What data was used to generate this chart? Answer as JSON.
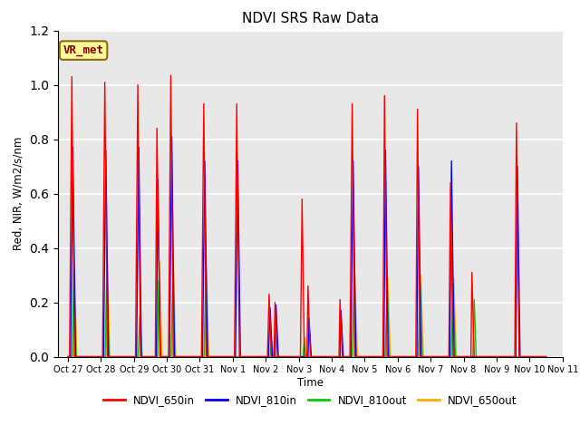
{
  "title": "NDVI SRS Raw Data",
  "ylabel": "Red, NIR, W/m2/s/nm",
  "xlabel": "Time",
  "ylim": [
    0,
    1.2
  ],
  "background_color": "#e8e8e8",
  "legend_labels": [
    "NDVI_650in",
    "NDVI_810in",
    "NDVI_810out",
    "NDVI_650out"
  ],
  "legend_colors": [
    "#ff0000",
    "#0000ff",
    "#00cc00",
    "#ffaa00"
  ],
  "annotation_text": "VR_met",
  "tick_labels": [
    "Oct 27",
    "Oct 28",
    "Oct 29",
    "Oct 30",
    "Oct 31",
    "Nov 1",
    "Nov 2",
    "Nov 3",
    "Nov 4",
    "Nov 5",
    "Nov 6",
    "Nov 7",
    "Nov 8",
    "Nov 9",
    "Nov 10",
    "Nov 11"
  ],
  "series": {
    "NDVI_650in": {
      "color": "#ff0000",
      "data": [
        [
          0.0,
          0.0
        ],
        [
          0.05,
          0.0
        ],
        [
          0.12,
          1.03
        ],
        [
          0.2,
          0.0
        ],
        [
          0.85,
          0.0
        ],
        [
          0.88,
          0.0
        ],
        [
          1.05,
          0.0
        ],
        [
          1.12,
          1.01
        ],
        [
          1.2,
          0.0
        ],
        [
          1.85,
          0.0
        ],
        [
          1.88,
          0.0
        ],
        [
          2.05,
          0.0
        ],
        [
          2.12,
          1.0
        ],
        [
          2.2,
          0.0
        ],
        [
          2.65,
          0.0
        ],
        [
          2.7,
          0.84
        ],
        [
          2.8,
          0.0
        ],
        [
          3.05,
          0.0
        ],
        [
          3.12,
          1.035
        ],
        [
          3.2,
          0.0
        ],
        [
          3.85,
          0.0
        ],
        [
          3.88,
          0.0
        ],
        [
          4.05,
          0.0
        ],
        [
          4.12,
          0.93
        ],
        [
          4.2,
          0.0
        ],
        [
          4.85,
          0.0
        ],
        [
          4.88,
          0.0
        ],
        [
          5.05,
          0.0
        ],
        [
          5.12,
          0.93
        ],
        [
          5.2,
          0.0
        ],
        [
          5.85,
          0.0
        ],
        [
          5.88,
          0.0
        ],
        [
          6.05,
          0.0
        ],
        [
          6.1,
          0.23
        ],
        [
          6.17,
          0.0
        ],
        [
          6.25,
          0.0
        ],
        [
          6.28,
          0.2
        ],
        [
          6.35,
          0.0
        ],
        [
          6.85,
          0.0
        ],
        [
          6.88,
          0.0
        ],
        [
          7.05,
          0.0
        ],
        [
          7.1,
          0.58
        ],
        [
          7.17,
          0.0
        ],
        [
          7.25,
          0.0
        ],
        [
          7.28,
          0.26
        ],
        [
          7.35,
          0.0
        ],
        [
          7.85,
          0.0
        ],
        [
          7.88,
          0.0
        ],
        [
          8.22,
          0.0
        ],
        [
          8.25,
          0.21
        ],
        [
          8.32,
          0.0
        ],
        [
          8.45,
          0.0
        ],
        [
          8.5,
          0.0
        ],
        [
          8.55,
          0.0
        ],
        [
          8.62,
          0.93
        ],
        [
          8.7,
          0.0
        ],
        [
          9.35,
          0.0
        ],
        [
          9.38,
          0.0
        ],
        [
          9.55,
          0.0
        ],
        [
          9.6,
          0.96
        ],
        [
          9.68,
          0.0
        ],
        [
          10.35,
          0.0
        ],
        [
          10.38,
          0.0
        ],
        [
          10.55,
          0.0
        ],
        [
          10.6,
          0.91
        ],
        [
          10.68,
          0.0
        ],
        [
          11.35,
          0.0
        ],
        [
          11.38,
          0.0
        ],
        [
          11.55,
          0.0
        ],
        [
          11.6,
          0.64
        ],
        [
          11.68,
          0.0
        ],
        [
          12.22,
          0.0
        ],
        [
          12.25,
          0.31
        ],
        [
          12.32,
          0.0
        ],
        [
          12.85,
          0.0
        ],
        [
          12.88,
          0.0
        ],
        [
          13.55,
          0.0
        ],
        [
          13.6,
          0.86
        ],
        [
          13.68,
          0.0
        ],
        [
          14.5,
          0.0
        ]
      ]
    },
    "NDVI_810in": {
      "color": "#0000ff",
      "data": [
        [
          0.0,
          0.0
        ],
        [
          0.08,
          0.0
        ],
        [
          0.15,
          0.77
        ],
        [
          0.23,
          0.0
        ],
        [
          0.85,
          0.0
        ],
        [
          0.88,
          0.0
        ],
        [
          1.08,
          0.0
        ],
        [
          1.15,
          0.76
        ],
        [
          1.23,
          0.0
        ],
        [
          1.85,
          0.0
        ],
        [
          1.88,
          0.0
        ],
        [
          2.08,
          0.0
        ],
        [
          2.15,
          0.77
        ],
        [
          2.23,
          0.0
        ],
        [
          2.68,
          0.0
        ],
        [
          2.73,
          0.65
        ],
        [
          2.8,
          0.0
        ],
        [
          3.08,
          0.0
        ],
        [
          3.15,
          0.81
        ],
        [
          3.23,
          0.0
        ],
        [
          3.85,
          0.0
        ],
        [
          3.88,
          0.0
        ],
        [
          4.08,
          0.0
        ],
        [
          4.15,
          0.72
        ],
        [
          4.23,
          0.0
        ],
        [
          4.85,
          0.0
        ],
        [
          4.88,
          0.0
        ],
        [
          5.08,
          0.0
        ],
        [
          5.15,
          0.72
        ],
        [
          5.23,
          0.0
        ],
        [
          5.85,
          0.0
        ],
        [
          5.88,
          0.0
        ],
        [
          6.08,
          0.0
        ],
        [
          6.13,
          0.18
        ],
        [
          6.2,
          0.0
        ],
        [
          6.28,
          0.0
        ],
        [
          6.31,
          0.19
        ],
        [
          6.38,
          0.0
        ],
        [
          6.85,
          0.0
        ],
        [
          6.88,
          0.0
        ],
        [
          7.08,
          0.0
        ],
        [
          7.13,
          0.0
        ],
        [
          7.2,
          0.0
        ],
        [
          7.28,
          0.0
        ],
        [
          7.31,
          0.14
        ],
        [
          7.38,
          0.0
        ],
        [
          7.85,
          0.0
        ],
        [
          7.88,
          0.0
        ],
        [
          8.25,
          0.0
        ],
        [
          8.28,
          0.17
        ],
        [
          8.35,
          0.0
        ],
        [
          8.48,
          0.0
        ],
        [
          8.5,
          0.0
        ],
        [
          8.58,
          0.0
        ],
        [
          8.65,
          0.72
        ],
        [
          8.73,
          0.0
        ],
        [
          9.38,
          0.0
        ],
        [
          9.4,
          0.0
        ],
        [
          9.58,
          0.0
        ],
        [
          9.63,
          0.76
        ],
        [
          9.71,
          0.0
        ],
        [
          10.38,
          0.0
        ],
        [
          10.4,
          0.0
        ],
        [
          10.58,
          0.0
        ],
        [
          10.63,
          0.7
        ],
        [
          10.71,
          0.0
        ],
        [
          11.38,
          0.0
        ],
        [
          11.4,
          0.0
        ],
        [
          11.58,
          0.0
        ],
        [
          11.63,
          0.72
        ],
        [
          11.71,
          0.0
        ],
        [
          12.25,
          0.0
        ],
        [
          12.28,
          0.0
        ],
        [
          12.35,
          0.0
        ],
        [
          12.85,
          0.0
        ],
        [
          12.88,
          0.0
        ],
        [
          13.58,
          0.0
        ],
        [
          13.63,
          0.7
        ],
        [
          13.71,
          0.0
        ],
        [
          14.5,
          0.0
        ]
      ]
    },
    "NDVI_810out": {
      "color": "#00cc00",
      "data": [
        [
          0.0,
          0.0
        ],
        [
          0.13,
          0.0
        ],
        [
          0.18,
          0.32
        ],
        [
          0.25,
          0.0
        ],
        [
          0.85,
          0.0
        ],
        [
          0.88,
          0.0
        ],
        [
          1.13,
          0.0
        ],
        [
          1.18,
          0.31
        ],
        [
          1.25,
          0.0
        ],
        [
          1.85,
          0.0
        ],
        [
          1.88,
          0.0
        ],
        [
          2.13,
          0.0
        ],
        [
          2.18,
          0.15
        ],
        [
          2.25,
          0.0
        ],
        [
          2.72,
          0.0
        ],
        [
          2.75,
          0.28
        ],
        [
          2.82,
          0.0
        ],
        [
          3.13,
          0.0
        ],
        [
          3.18,
          0.28
        ],
        [
          3.25,
          0.0
        ],
        [
          3.85,
          0.0
        ],
        [
          3.88,
          0.0
        ],
        [
          4.13,
          0.0
        ],
        [
          4.18,
          0.31
        ],
        [
          4.25,
          0.0
        ],
        [
          4.85,
          0.0
        ],
        [
          4.88,
          0.0
        ],
        [
          5.13,
          0.0
        ],
        [
          5.18,
          0.0
        ],
        [
          5.25,
          0.0
        ],
        [
          5.85,
          0.0
        ],
        [
          5.88,
          0.0
        ],
        [
          6.13,
          0.0
        ],
        [
          6.16,
          0.05
        ],
        [
          6.22,
          0.0
        ],
        [
          6.85,
          0.0
        ],
        [
          6.88,
          0.0
        ],
        [
          7.13,
          0.0
        ],
        [
          7.16,
          0.05
        ],
        [
          7.22,
          0.0
        ],
        [
          7.85,
          0.0
        ],
        [
          7.88,
          0.0
        ],
        [
          8.5,
          0.0
        ],
        [
          8.62,
          0.0
        ],
        [
          8.68,
          0.27
        ],
        [
          8.75,
          0.0
        ],
        [
          9.38,
          0.0
        ],
        [
          9.4,
          0.0
        ],
        [
          9.62,
          0.0
        ],
        [
          9.68,
          0.26
        ],
        [
          9.75,
          0.0
        ],
        [
          10.38,
          0.0
        ],
        [
          10.4,
          0.0
        ],
        [
          10.62,
          0.0
        ],
        [
          10.68,
          0.27
        ],
        [
          10.75,
          0.0
        ],
        [
          11.38,
          0.0
        ],
        [
          11.4,
          0.0
        ],
        [
          11.62,
          0.0
        ],
        [
          11.68,
          0.27
        ],
        [
          11.75,
          0.0
        ],
        [
          12.28,
          0.0
        ],
        [
          12.32,
          0.21
        ],
        [
          12.38,
          0.0
        ],
        [
          12.85,
          0.0
        ],
        [
          12.88,
          0.0
        ],
        [
          13.62,
          0.0
        ],
        [
          13.68,
          0.0
        ],
        [
          13.75,
          0.0
        ],
        [
          14.5,
          0.0
        ]
      ]
    },
    "NDVI_650out": {
      "color": "#ffaa00",
      "data": [
        [
          0.0,
          0.0
        ],
        [
          0.16,
          0.0
        ],
        [
          0.2,
          0.35
        ],
        [
          0.27,
          0.0
        ],
        [
          0.85,
          0.0
        ],
        [
          0.88,
          0.0
        ],
        [
          1.16,
          0.0
        ],
        [
          1.2,
          0.34
        ],
        [
          1.27,
          0.0
        ],
        [
          1.85,
          0.0
        ],
        [
          1.88,
          0.0
        ],
        [
          2.16,
          0.0
        ],
        [
          2.2,
          0.0
        ],
        [
          2.27,
          0.0
        ],
        [
          2.75,
          0.0
        ],
        [
          2.78,
          0.35
        ],
        [
          2.85,
          0.0
        ],
        [
          3.16,
          0.0
        ],
        [
          3.2,
          0.35
        ],
        [
          3.27,
          0.0
        ],
        [
          3.85,
          0.0
        ],
        [
          3.88,
          0.0
        ],
        [
          4.16,
          0.0
        ],
        [
          4.2,
          0.32
        ],
        [
          4.27,
          0.0
        ],
        [
          4.85,
          0.0
        ],
        [
          4.88,
          0.0
        ],
        [
          5.16,
          0.0
        ],
        [
          5.2,
          0.0
        ],
        [
          5.27,
          0.0
        ],
        [
          5.85,
          0.0
        ],
        [
          5.88,
          0.0
        ],
        [
          6.16,
          0.0
        ],
        [
          6.19,
          0.06
        ],
        [
          6.25,
          0.0
        ],
        [
          6.85,
          0.0
        ],
        [
          6.88,
          0.0
        ],
        [
          7.16,
          0.0
        ],
        [
          7.19,
          0.07
        ],
        [
          7.25,
          0.0
        ],
        [
          7.85,
          0.0
        ],
        [
          7.88,
          0.0
        ],
        [
          8.5,
          0.0
        ],
        [
          8.65,
          0.0
        ],
        [
          8.7,
          0.3
        ],
        [
          8.78,
          0.0
        ],
        [
          9.38,
          0.0
        ],
        [
          9.4,
          0.0
        ],
        [
          9.65,
          0.0
        ],
        [
          9.7,
          0.29
        ],
        [
          9.78,
          0.0
        ],
        [
          10.38,
          0.0
        ],
        [
          10.4,
          0.0
        ],
        [
          10.65,
          0.0
        ],
        [
          10.7,
          0.3
        ],
        [
          10.78,
          0.0
        ],
        [
          11.38,
          0.0
        ],
        [
          11.4,
          0.0
        ],
        [
          11.65,
          0.0
        ],
        [
          11.7,
          0.29
        ],
        [
          11.78,
          0.0
        ],
        [
          12.3,
          0.0
        ],
        [
          12.35,
          0.0
        ],
        [
          12.4,
          0.0
        ],
        [
          12.85,
          0.0
        ],
        [
          12.88,
          0.0
        ],
        [
          13.65,
          0.0
        ],
        [
          13.7,
          0.0
        ],
        [
          13.78,
          0.0
        ],
        [
          14.5,
          0.0
        ]
      ]
    }
  }
}
